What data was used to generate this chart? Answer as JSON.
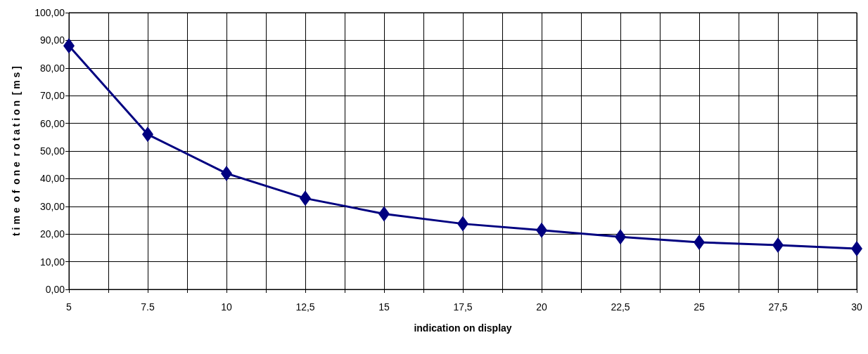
{
  "chart_data": {
    "type": "line",
    "xlabel": "indication on display",
    "ylabel": "t i m e  o f  o n e  r o t a t i o n  [ m s ]",
    "x": [
      5,
      7.5,
      10,
      12.5,
      15,
      17.5,
      20,
      22.5,
      25,
      27.5,
      30
    ],
    "series": [
      {
        "color": "#000080",
        "values": [
          88.0,
          56.0,
          41.9,
          32.9,
          27.3,
          23.7,
          21.4,
          19.0,
          17.0,
          16.0,
          14.7
        ]
      }
    ],
    "xlim": [
      5,
      30
    ],
    "xticks": [
      5,
      {
        "value": 6.25,
        "label": null
      },
      7.5,
      {
        "value": 8.75,
        "label": null
      },
      10,
      {
        "value": 11.25,
        "label": null
      },
      {
        "value": 12.5,
        "label": "12,5"
      },
      {
        "value": 13.75,
        "label": null
      },
      15,
      {
        "value": 16.25,
        "label": null
      },
      {
        "value": 17.5,
        "label": "17,5"
      },
      {
        "value": 18.75,
        "label": null
      },
      20,
      {
        "value": 21.25,
        "label": null
      },
      {
        "value": 22.5,
        "label": "22,5"
      },
      {
        "value": 23.75,
        "label": null
      },
      25,
      {
        "value": 26.25,
        "label": null
      },
      {
        "value": 27.5,
        "label": "27,5"
      },
      {
        "value": 28.75,
        "label": null
      },
      30
    ],
    "ylim": [
      0,
      100
    ],
    "yticks": [
      {
        "value": 0,
        "label": "0,00"
      },
      {
        "value": 10,
        "label": "10,00"
      },
      {
        "value": 20,
        "label": "20,00"
      },
      {
        "value": 30,
        "label": "30,00"
      },
      {
        "value": 40,
        "label": "40,00"
      },
      {
        "value": 50,
        "label": "50,00"
      },
      {
        "value": 60,
        "label": "60,00"
      },
      {
        "value": 70,
        "label": "70,00"
      },
      {
        "value": 80,
        "label": "80,00"
      },
      {
        "value": 90,
        "label": "90,00"
      },
      {
        "value": 100,
        "label": "100,00"
      }
    ],
    "grid": true,
    "marker": "diamond",
    "line_style": "solid"
  }
}
